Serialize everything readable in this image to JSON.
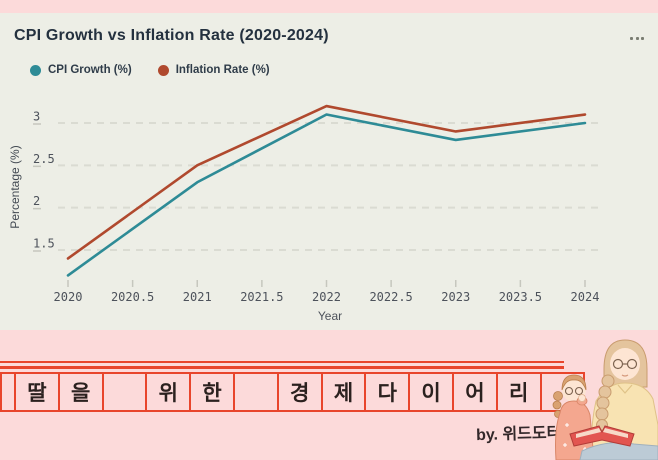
{
  "header": {
    "title": "CPI Growth vs Inflation Rate (2020-2024)",
    "menu_icon": "ellipsis-menu"
  },
  "legend": [
    {
      "label": "CPI Growth (%)",
      "color": "#2e8b96"
    },
    {
      "label": "Inflation Rate (%)",
      "color": "#b0492e"
    }
  ],
  "chart_data": {
    "type": "line",
    "title": "CPI Growth vs Inflation Rate (2020-2024)",
    "x": [
      2020,
      2021,
      2022,
      2023,
      2024
    ],
    "series": [
      {
        "name": "CPI Growth (%)",
        "color": "#2e8b96",
        "values": [
          1.2,
          2.3,
          3.1,
          2.8,
          3.0
        ]
      },
      {
        "name": "Inflation Rate (%)",
        "color": "#b0492e",
        "values": [
          1.4,
          2.5,
          3.2,
          2.9,
          3.1
        ]
      }
    ],
    "xlabel": "Year",
    "ylabel": "Percentage (%)",
    "xticks": [
      "2020",
      "2020.5",
      "2021",
      "2021.5",
      "2022",
      "2022.5",
      "2023",
      "2023.5",
      "2024"
    ],
    "yticks": [
      "1.5",
      "2",
      "2.5",
      "3"
    ],
    "ylim": [
      1.05,
      3.45
    ],
    "grid": "horizontal-dashed",
    "legend_position": "top-left"
  },
  "banner": {
    "cells": [
      "딸",
      "을",
      "",
      "위",
      "한",
      "",
      "경",
      "제",
      "다",
      "이",
      "어",
      "리",
      ""
    ],
    "signature": "by. 위드도터",
    "line_color": "#e8452c",
    "illustration": "mother-daughter-reading"
  },
  "colors": {
    "page_pink": "#fcdada",
    "card_bg": "#edeee6",
    "title_text": "#24313f",
    "tick_text": "#4d525b",
    "gridline": "#dadbd2",
    "box_border": "#e8452c"
  }
}
